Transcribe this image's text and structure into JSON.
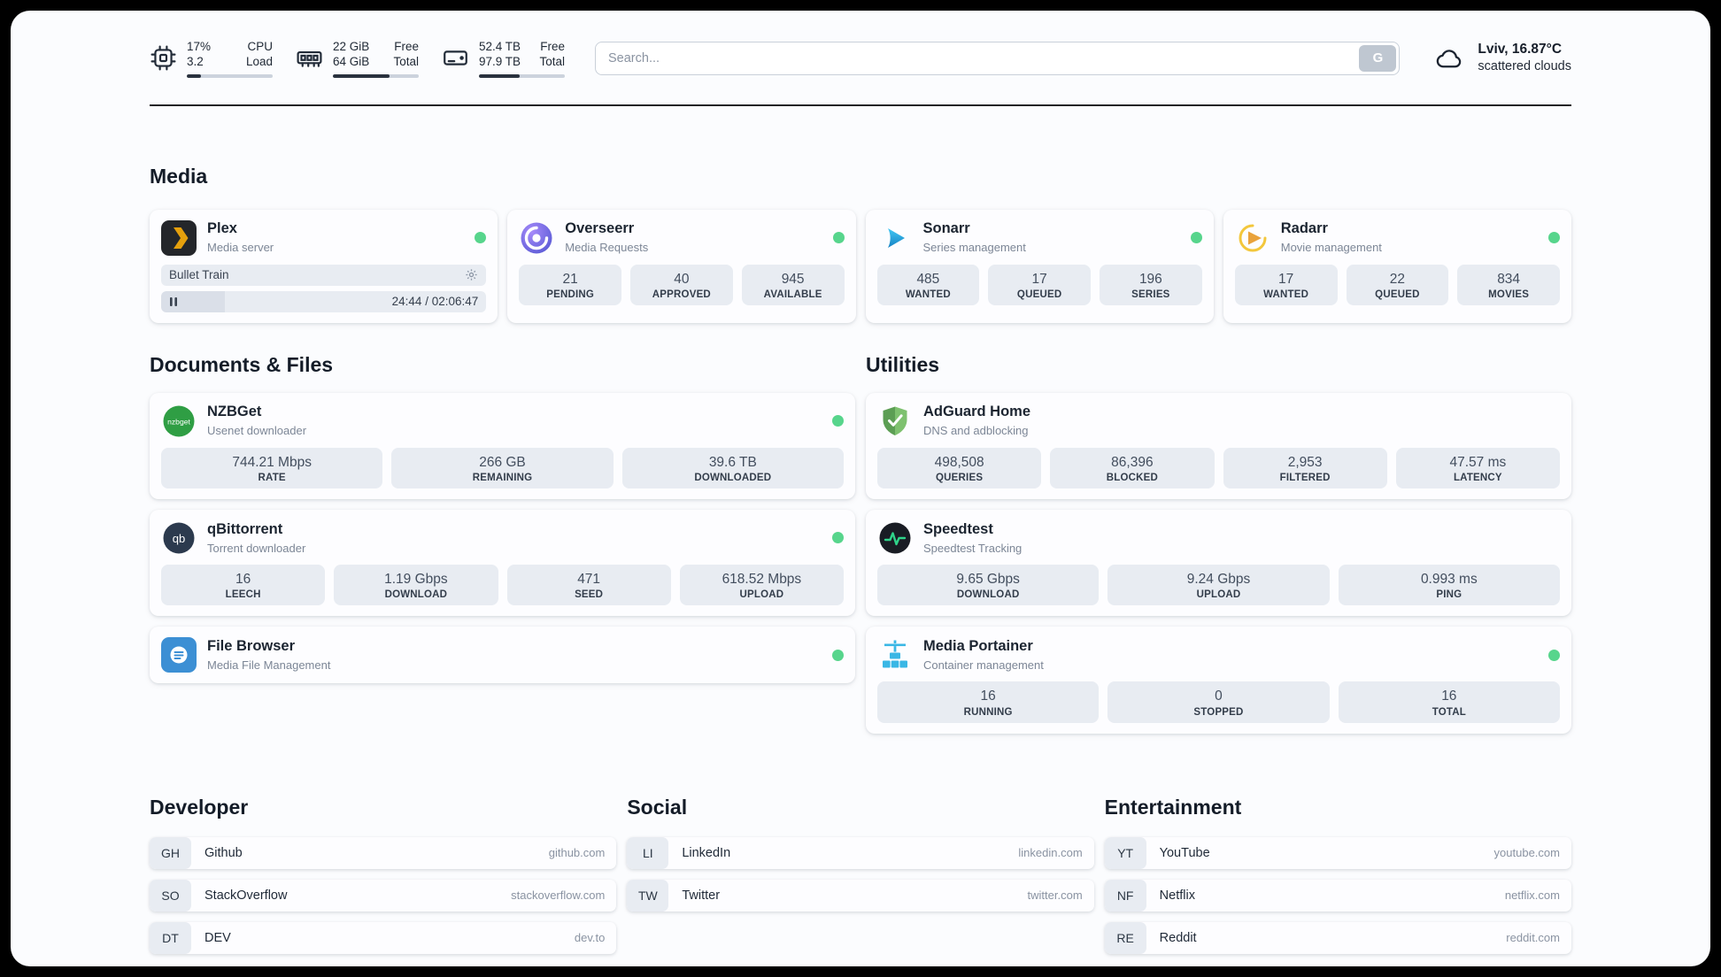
{
  "topbar": {
    "cpu": {
      "value1": "17%",
      "value2": "3.2",
      "label1": "CPU",
      "label2": "Load",
      "bar_percent": 17
    },
    "ram": {
      "value1": "22 GiB",
      "value2": "64 GiB",
      "label1": "Free",
      "label2": "Total",
      "bar_percent": 66
    },
    "disk": {
      "value1": "52.4 TB",
      "value2": "97.9 TB",
      "label1": "Free",
      "label2": "Total",
      "bar_percent": 47
    },
    "search": {
      "placeholder": "Search...",
      "button_label": "G"
    },
    "weather": {
      "location": "Lviv, 16.87°C",
      "condition": "scattered clouds"
    }
  },
  "sections": {
    "media": {
      "title": "Media"
    },
    "documents": {
      "title": "Documents & Files"
    },
    "utilities": {
      "title": "Utilities"
    }
  },
  "services": {
    "plex": {
      "name": "Plex",
      "desc": "Media server",
      "now_playing": "Bullet Train",
      "time": "24:44 / 02:06:47",
      "progress_percent": 19.5
    },
    "overseerr": {
      "name": "Overseerr",
      "desc": "Media Requests",
      "stats": [
        {
          "value": "21",
          "label": "PENDING"
        },
        {
          "value": "40",
          "label": "APPROVED"
        },
        {
          "value": "945",
          "label": "AVAILABLE"
        }
      ]
    },
    "sonarr": {
      "name": "Sonarr",
      "desc": "Series management",
      "stats": [
        {
          "value": "485",
          "label": "WANTED"
        },
        {
          "value": "17",
          "label": "QUEUED"
        },
        {
          "value": "196",
          "label": "SERIES"
        }
      ]
    },
    "radarr": {
      "name": "Radarr",
      "desc": "Movie management",
      "stats": [
        {
          "value": "17",
          "label": "WANTED"
        },
        {
          "value": "22",
          "label": "QUEUED"
        },
        {
          "value": "834",
          "label": "MOVIES"
        }
      ]
    },
    "nzbget": {
      "name": "NZBGet",
      "desc": "Usenet downloader",
      "icon_text": "nzbget",
      "stats": [
        {
          "value": "744.21 Mbps",
          "label": "RATE"
        },
        {
          "value": "266 GB",
          "label": "REMAINING"
        },
        {
          "value": "39.6 TB",
          "label": "DOWNLOADED"
        }
      ]
    },
    "qbittorrent": {
      "name": "qBittorrent",
      "desc": "Torrent downloader",
      "icon_text": "qb",
      "stats": [
        {
          "value": "16",
          "label": "LEECH"
        },
        {
          "value": "1.19 Gbps",
          "label": "DOWNLOAD"
        },
        {
          "value": "471",
          "label": "SEED"
        },
        {
          "value": "618.52 Mbps",
          "label": "UPLOAD"
        }
      ]
    },
    "filebrowser": {
      "name": "File Browser",
      "desc": "Media File Management"
    },
    "adguard": {
      "name": "AdGuard Home",
      "desc": "DNS and adblocking",
      "stats": [
        {
          "value": "498,508",
          "label": "QUERIES"
        },
        {
          "value": "86,396",
          "label": "BLOCKED"
        },
        {
          "value": "2,953",
          "label": "FILTERED"
        },
        {
          "value": "47.57 ms",
          "label": "LATENCY"
        }
      ]
    },
    "speedtest": {
      "name": "Speedtest",
      "desc": "Speedtest Tracking",
      "stats": [
        {
          "value": "9.65 Gbps",
          "label": "DOWNLOAD"
        },
        {
          "value": "9.24 Gbps",
          "label": "UPLOAD"
        },
        {
          "value": "0.993 ms",
          "label": "PING"
        }
      ]
    },
    "portainer": {
      "name": "Media Portainer",
      "desc": "Container management",
      "stats": [
        {
          "value": "16",
          "label": "RUNNING"
        },
        {
          "value": "0",
          "label": "STOPPED"
        },
        {
          "value": "16",
          "label": "TOTAL"
        }
      ]
    }
  },
  "bookmarks": {
    "developer": {
      "title": "Developer",
      "items": [
        {
          "abbr": "GH",
          "name": "Github",
          "domain": "github.com"
        },
        {
          "abbr": "SO",
          "name": "StackOverflow",
          "domain": "stackoverflow.com"
        },
        {
          "abbr": "DT",
          "name": "DEV",
          "domain": "dev.to"
        }
      ]
    },
    "social": {
      "title": "Social",
      "items": [
        {
          "abbr": "LI",
          "name": "LinkedIn",
          "domain": "linkedin.com"
        },
        {
          "abbr": "TW",
          "name": "Twitter",
          "domain": "twitter.com"
        }
      ]
    },
    "entertainment": {
      "title": "Entertainment",
      "items": [
        {
          "abbr": "YT",
          "name": "YouTube",
          "domain": "youtube.com"
        },
        {
          "abbr": "NF",
          "name": "Netflix",
          "domain": "netflix.com"
        },
        {
          "abbr": "RE",
          "name": "Reddit",
          "domain": "reddit.com"
        }
      ]
    }
  }
}
